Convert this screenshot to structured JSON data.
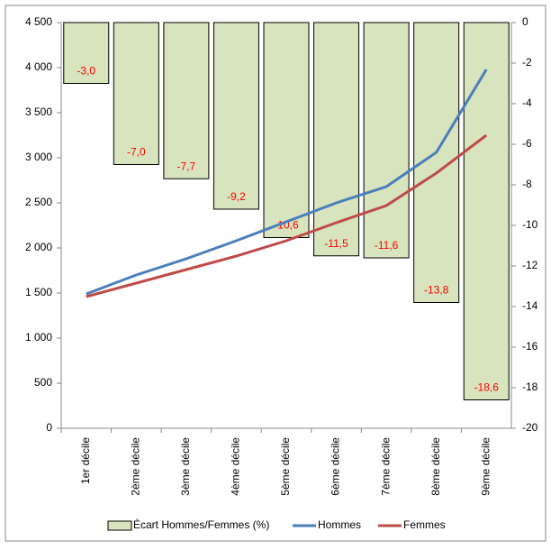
{
  "chart_data": {
    "type": "bar-line",
    "categories": [
      "1er décile",
      "2ème décile",
      "3ème décile",
      "4ème décile",
      "5ème décile",
      "6ème décile",
      "7ème décile",
      "8ème décile",
      "9ème décile"
    ],
    "series": [
      {
        "name": "Écart Hommes/Femmes (%)",
        "type": "bar",
        "axis": "y2",
        "color": "#d7e4bd",
        "label_color": "#ff0000",
        "values": [
          -3.0,
          -7.0,
          -7.7,
          -9.2,
          -10.6,
          -11.5,
          -11.6,
          -13.8,
          -18.6
        ],
        "value_labels": [
          "-3,0",
          "-7,0",
          "-7,7",
          "-9,2",
          "-10,6",
          "-11,5",
          "-11,6",
          "-13,8",
          "-18,6"
        ]
      },
      {
        "name": "Hommes",
        "type": "line",
        "axis": "y",
        "color": "#4a7ebb",
        "values": [
          1490,
          1700,
          1880,
          2080,
          2290,
          2500,
          2680,
          3060,
          3980
        ]
      },
      {
        "name": "Femmes",
        "type": "line",
        "axis": "y",
        "color": "#be4b48",
        "values": [
          1460,
          1610,
          1760,
          1910,
          2080,
          2280,
          2470,
          2830,
          3250
        ]
      }
    ],
    "ylim": [
      0,
      4500
    ],
    "yticks": [
      0,
      500,
      {
        "value": 1000,
        "label": "1 000"
      },
      {
        "value": 1500,
        "label": "1 500"
      },
      {
        "value": 2000,
        "label": "2 000"
      },
      {
        "value": 2500,
        "label": "2 500"
      },
      {
        "value": 3000,
        "label": "3 000"
      },
      {
        "value": 3500,
        "label": "3 500"
      },
      {
        "value": 4000,
        "label": "4 000"
      },
      {
        "value": 4500,
        "label": "4 500"
      }
    ],
    "y2lim": [
      -20,
      0
    ],
    "y2ticks": [
      0,
      -2,
      -4,
      -6,
      -8,
      -10,
      -12,
      -14,
      -16,
      -18,
      -20
    ],
    "grid": false,
    "legend": "bottom"
  }
}
